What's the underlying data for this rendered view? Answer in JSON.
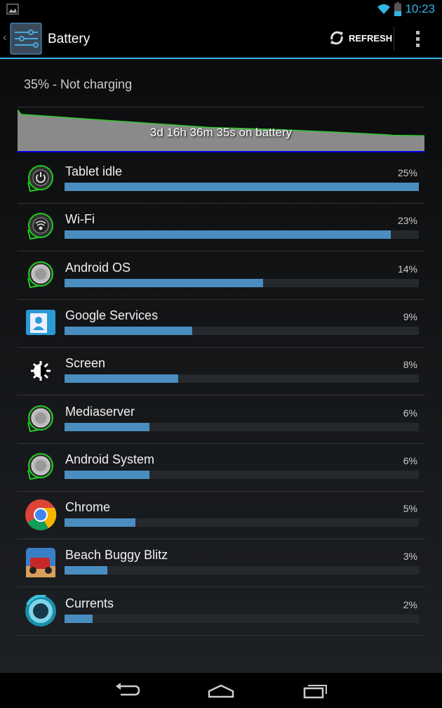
{
  "status_bar": {
    "time": "10:23",
    "icons": [
      "image-icon",
      "wifi-icon",
      "battery-icon"
    ]
  },
  "action_bar": {
    "title": "Battery",
    "refresh_label": "REFRESH",
    "app_icon": "settings-sliders-icon"
  },
  "summary": "35% - Not charging",
  "graph": {
    "label": "3d 16h 36m 35s on battery",
    "chart_data": {
      "type": "area",
      "x_unit": "hours",
      "y_unit": "percent",
      "ylim": [
        0,
        100
      ],
      "points": [
        [
          0,
          95
        ],
        [
          0.8,
          84
        ],
        [
          7.9,
          79
        ],
        [
          14.5,
          74
        ],
        [
          42,
          54
        ],
        [
          57.3,
          49
        ],
        [
          68,
          44
        ],
        [
          81,
          37
        ],
        [
          81.7,
          36
        ],
        [
          88.6,
          35
        ]
      ]
    },
    "line_color": "#2ecc2e",
    "fill_color": "#8a8a8a"
  },
  "items": [
    {
      "name": "Tablet idle",
      "percent": "25%",
      "value": 25,
      "icon": "power-icon"
    },
    {
      "name": "Wi-Fi",
      "percent": "23%",
      "value": 23,
      "icon": "wifi-icon"
    },
    {
      "name": "Android OS",
      "percent": "14%",
      "value": 14,
      "icon": "android-os-icon"
    },
    {
      "name": "Google Services",
      "percent": "9%",
      "value": 9,
      "icon": "contacts-icon"
    },
    {
      "name": "Screen",
      "percent": "8%",
      "value": 8,
      "icon": "brightness-icon"
    },
    {
      "name": "Mediaserver",
      "percent": "6%",
      "value": 6,
      "icon": "android-os-icon"
    },
    {
      "name": "Android System",
      "percent": "6%",
      "value": 6,
      "icon": "android-os-icon"
    },
    {
      "name": "Chrome",
      "percent": "5%",
      "value": 5,
      "icon": "chrome-icon"
    },
    {
      "name": "Beach Buggy Blitz",
      "percent": "3%",
      "value": 3,
      "icon": "game-icon"
    },
    {
      "name": "Currents",
      "percent": "2%",
      "value": 2,
      "icon": "currents-icon"
    }
  ],
  "nav": [
    "back-icon",
    "home-icon",
    "recents-icon"
  ]
}
